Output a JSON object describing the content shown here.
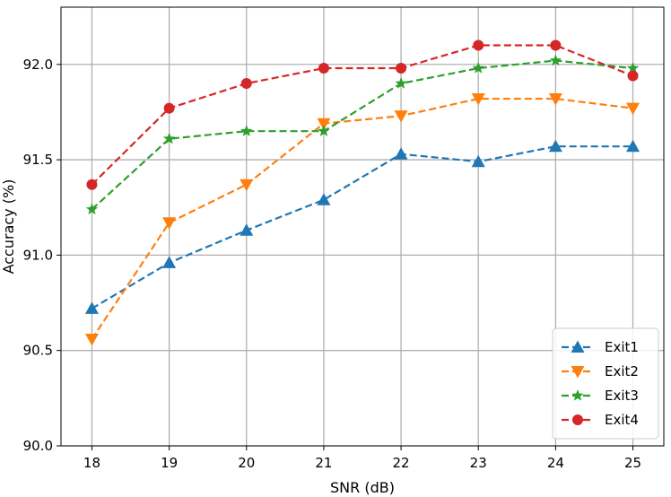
{
  "chart_data": {
    "type": "line",
    "title": "",
    "xlabel": "SNR (dB)",
    "ylabel": "Accuracy (%)",
    "x": [
      18,
      19,
      20,
      21,
      22,
      23,
      24,
      25
    ],
    "xlim": [
      17.6,
      25.4
    ],
    "ylim": [
      90.0,
      92.3
    ],
    "xticks": [
      18,
      19,
      20,
      21,
      22,
      23,
      24,
      25
    ],
    "yticks": [
      90.0,
      90.5,
      91.0,
      91.5,
      92.0
    ],
    "ytick_labels": [
      "90.0",
      "90.5",
      "91.0",
      "91.5",
      "92.0"
    ],
    "grid": true,
    "legend_position": "bottom-right",
    "series": [
      {
        "name": "Exit1",
        "color": "#1f77b4",
        "marker": "triangle-up",
        "values": [
          90.72,
          90.96,
          91.13,
          91.29,
          91.53,
          91.49,
          91.57,
          91.57
        ]
      },
      {
        "name": "Exit2",
        "color": "#ff7f0e",
        "marker": "triangle-down",
        "values": [
          90.56,
          91.17,
          91.37,
          91.69,
          91.73,
          91.82,
          91.82,
          91.77
        ]
      },
      {
        "name": "Exit3",
        "color": "#2ca02c",
        "marker": "star",
        "values": [
          91.24,
          91.61,
          91.65,
          91.65,
          91.9,
          91.98,
          92.02,
          91.98
        ]
      },
      {
        "name": "Exit4",
        "color": "#d62728",
        "marker": "circle",
        "values": [
          91.37,
          91.77,
          91.9,
          91.98,
          91.98,
          92.1,
          92.1,
          91.94
        ]
      }
    ]
  }
}
